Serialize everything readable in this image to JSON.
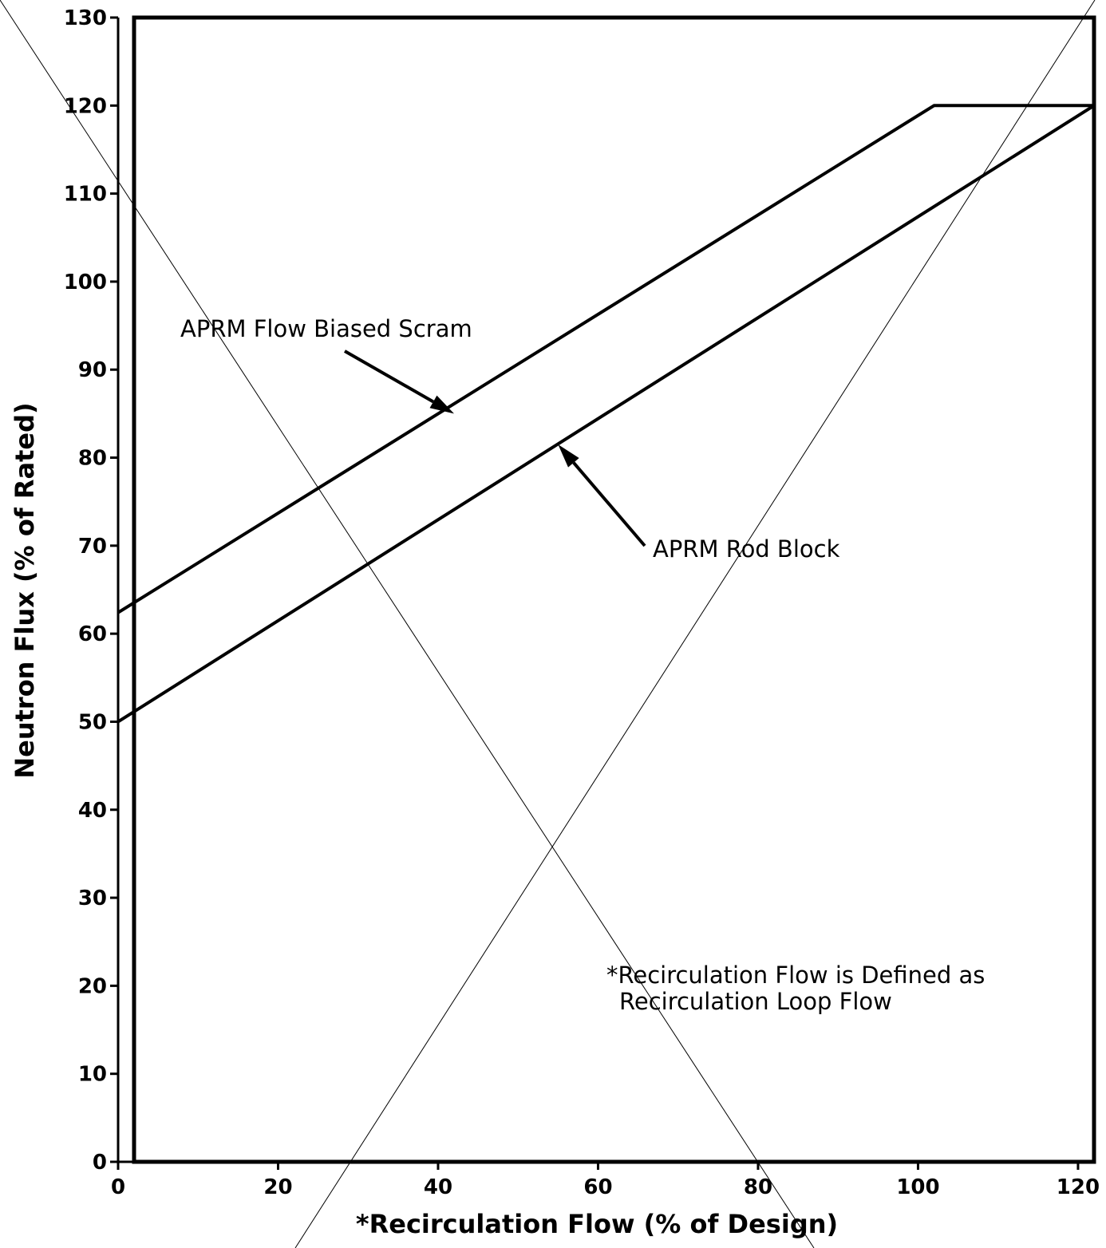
{
  "chart_data": {
    "type": "line",
    "title": "",
    "xlabel": "*Recirculation Flow (% of Design)",
    "ylabel": "Neutron Flux (% of Rated)",
    "xlim": [
      0,
      122
    ],
    "ylim": [
      0,
      130
    ],
    "grid": false,
    "legend": "none",
    "xticks": [
      "0",
      "20",
      "40",
      "60",
      "80",
      "100",
      "120"
    ],
    "yticks": [
      "0",
      "10",
      "20",
      "30",
      "40",
      "50",
      "60",
      "70",
      "80",
      "90",
      "100",
      "110",
      "120",
      "130"
    ],
    "series": [
      {
        "name": "APRM Flow Biased Scram",
        "x": [
          0,
          102,
          122
        ],
        "y": [
          62.4,
          120,
          120
        ]
      },
      {
        "name": "APRM Rod Block",
        "x": [
          0,
          122
        ],
        "y": [
          50,
          120
        ]
      }
    ],
    "annotations": [
      {
        "text": "APRM Flow Biased Scram",
        "x": 42,
        "y": 85
      },
      {
        "text": "APRM Rod Block",
        "x": 55,
        "y": 81.5
      }
    ],
    "footnote": [
      "*Recirculation Flow is Defined as",
      "Recirculation Loop Flow"
    ],
    "colors": {
      "line": "#000000",
      "background": "#ffffff"
    }
  }
}
